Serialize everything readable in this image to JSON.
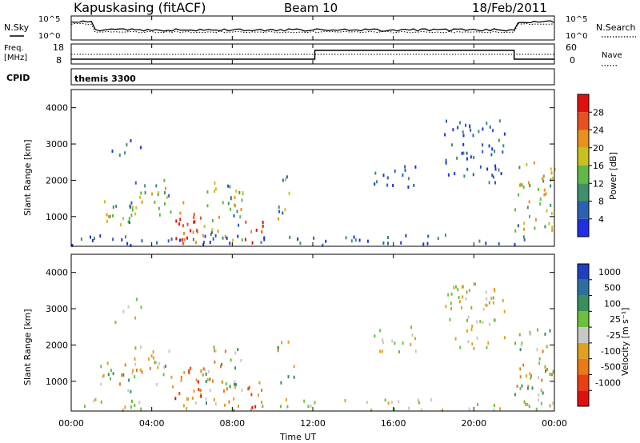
{
  "header": {
    "site": "Kapuskasing (fitACF)",
    "beam": "Beam 10",
    "date": "18/Feb/2011"
  },
  "noise_panel": {
    "left_label": "N.Sky",
    "right_label": "N.Search",
    "left_ticks": [
      "10^5",
      "10^0"
    ],
    "right_ticks": [
      "10^5",
      "10^0"
    ]
  },
  "freq_panel": {
    "label_line1": "Freq.",
    "label_line2": "[MHz]",
    "left_ticks": [
      "18",
      "8"
    ],
    "right_ticks": [
      "60",
      "0"
    ],
    "right_label": "Nave",
    "cpid_label": "CPID",
    "cpid_value": "themis 3300"
  },
  "chart_data": [
    {
      "type": "heatmap",
      "name": "power",
      "ylabel": "Slant Range [km]",
      "y_ticks": [
        "1000",
        "2000",
        "3000",
        "4000"
      ],
      "ylim": [
        180,
        4500
      ],
      "colorbar": {
        "label": "Power [dB]",
        "ticks": [
          "4",
          "8",
          "12",
          "16",
          "20",
          "24",
          "28"
        ],
        "colors": [
          "#2030e0",
          "#2f5fb0",
          "#3f8f6a",
          "#5fb848",
          "#c8c020",
          "#e89020",
          "#e85020",
          "#e01010"
        ]
      }
    },
    {
      "type": "heatmap",
      "name": "velocity",
      "ylabel": "Slant Range [km]",
      "y_ticks": [
        "1000",
        "2000",
        "3000",
        "4000"
      ],
      "ylim": [
        180,
        4500
      ],
      "colorbar": {
        "label": "Velocity [m s⁻¹]",
        "ticks": [
          "1000",
          "500",
          "100",
          "25",
          "-25",
          "-100",
          "-500",
          "-1000"
        ],
        "colors": [
          "#2040c0",
          "#2f6fa0",
          "#3a8f5a",
          "#6cc03c",
          "#c8c8c8",
          "#e0a020",
          "#e87a18",
          "#e84010",
          "#e01010"
        ]
      }
    }
  ],
  "x_axis": {
    "ticks": [
      "00:00",
      "04:00",
      "08:00",
      "12:00",
      "16:00",
      "20:00",
      "00:00"
    ],
    "label": "Time UT"
  }
}
